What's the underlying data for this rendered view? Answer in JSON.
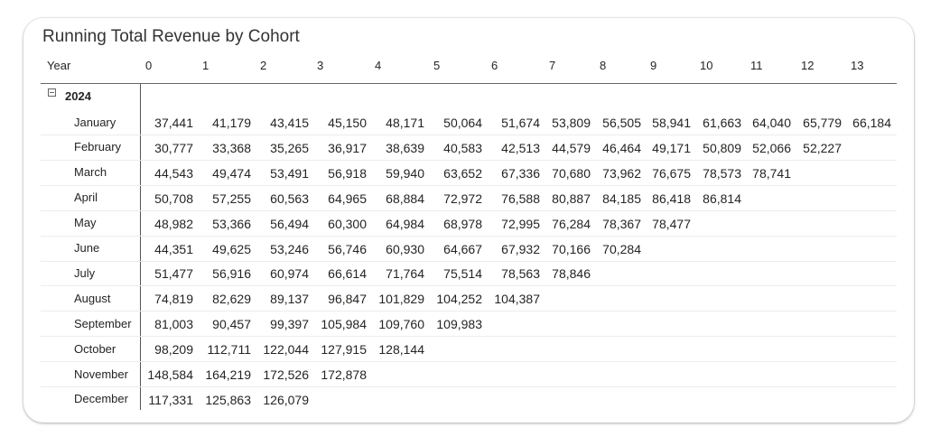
{
  "chart_data": {
    "type": "table",
    "title": "Running Total Revenue by Cohort",
    "row_header_label": "Year",
    "columns": [
      "0",
      "1",
      "2",
      "3",
      "4",
      "5",
      "6",
      "7",
      "8",
      "9",
      "10",
      "11",
      "12",
      "13"
    ],
    "groups": [
      {
        "year": "2024",
        "rows": [
          {
            "label": "January",
            "values": [
              "37,441",
              "41,179",
              "43,415",
              "45,150",
              "48,171",
              "50,064",
              "51,674",
              "53,809",
              "56,505",
              "58,941",
              "61,663",
              "64,040",
              "65,779",
              "66,184"
            ]
          },
          {
            "label": "February",
            "values": [
              "30,777",
              "33,368",
              "35,265",
              "36,917",
              "38,639",
              "40,583",
              "42,513",
              "44,579",
              "46,464",
              "49,171",
              "50,809",
              "52,066",
              "52,227"
            ]
          },
          {
            "label": "March",
            "values": [
              "44,543",
              "49,474",
              "53,491",
              "56,918",
              "59,940",
              "63,652",
              "67,336",
              "70,680",
              "73,962",
              "76,675",
              "78,573",
              "78,741"
            ]
          },
          {
            "label": "April",
            "values": [
              "50,708",
              "57,255",
              "60,563",
              "64,965",
              "68,884",
              "72,972",
              "76,588",
              "80,887",
              "84,185",
              "86,418",
              "86,814"
            ]
          },
          {
            "label": "May",
            "values": [
              "48,982",
              "53,366",
              "56,494",
              "60,300",
              "64,984",
              "68,978",
              "72,995",
              "76,284",
              "78,367",
              "78,477"
            ]
          },
          {
            "label": "June",
            "values": [
              "44,351",
              "49,625",
              "53,246",
              "56,746",
              "60,930",
              "64,667",
              "67,932",
              "70,166",
              "70,284"
            ]
          },
          {
            "label": "July",
            "values": [
              "51,477",
              "56,916",
              "60,974",
              "66,614",
              "71,764",
              "75,514",
              "78,563",
              "78,846"
            ]
          },
          {
            "label": "August",
            "values": [
              "74,819",
              "82,629",
              "89,137",
              "96,847",
              "101,829",
              "104,252",
              "104,387"
            ]
          },
          {
            "label": "September",
            "values": [
              "81,003",
              "90,457",
              "99,397",
              "105,984",
              "109,760",
              "109,983"
            ]
          },
          {
            "label": "October",
            "values": [
              "98,209",
              "112,711",
              "122,044",
              "127,915",
              "128,144"
            ]
          },
          {
            "label": "November",
            "values": [
              "148,584",
              "164,219",
              "172,526",
              "172,878"
            ]
          },
          {
            "label": "December",
            "values": [
              "117,331",
              "125,863",
              "126,079"
            ]
          }
        ]
      }
    ]
  }
}
